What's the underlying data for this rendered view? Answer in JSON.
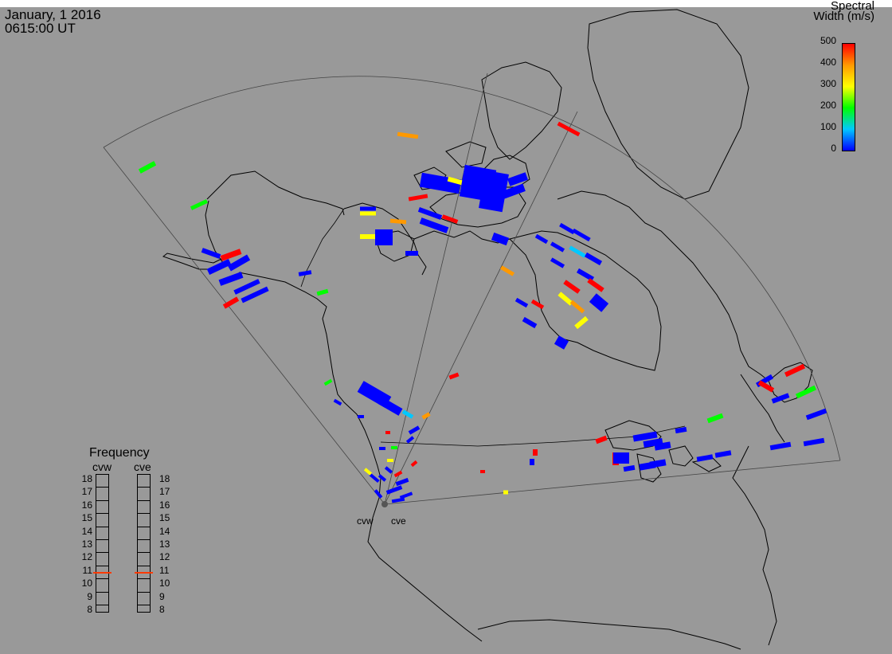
{
  "header": {
    "date": "January, 1 2016",
    "time": "0615:00 UT"
  },
  "colorbar": {
    "title_line1": "Spectral",
    "title_line2": "Width (m/s)",
    "ticks": [
      "500",
      "400",
      "300",
      "200",
      "100",
      "0"
    ]
  },
  "frequency_panel": {
    "title": "Frequency",
    "radars": [
      "cvw",
      "cve"
    ],
    "levels": [
      "18",
      "17",
      "16",
      "15",
      "14",
      "13",
      "12",
      "11",
      "10",
      "9",
      "8"
    ],
    "cvw_frequency": 10.6,
    "cve_frequency": 10.6
  },
  "radar_sites": [
    "cvw",
    "cve"
  ],
  "colors": {
    "background": "#999999",
    "coastline": "#000000",
    "colormap": [
      "#0000ff",
      "#00c8ff",
      "#00ff00",
      "#ffff00",
      "#ff9900",
      "#ff0000"
    ]
  },
  "icons": {
    "site-marker": "site-dot-icon"
  }
}
